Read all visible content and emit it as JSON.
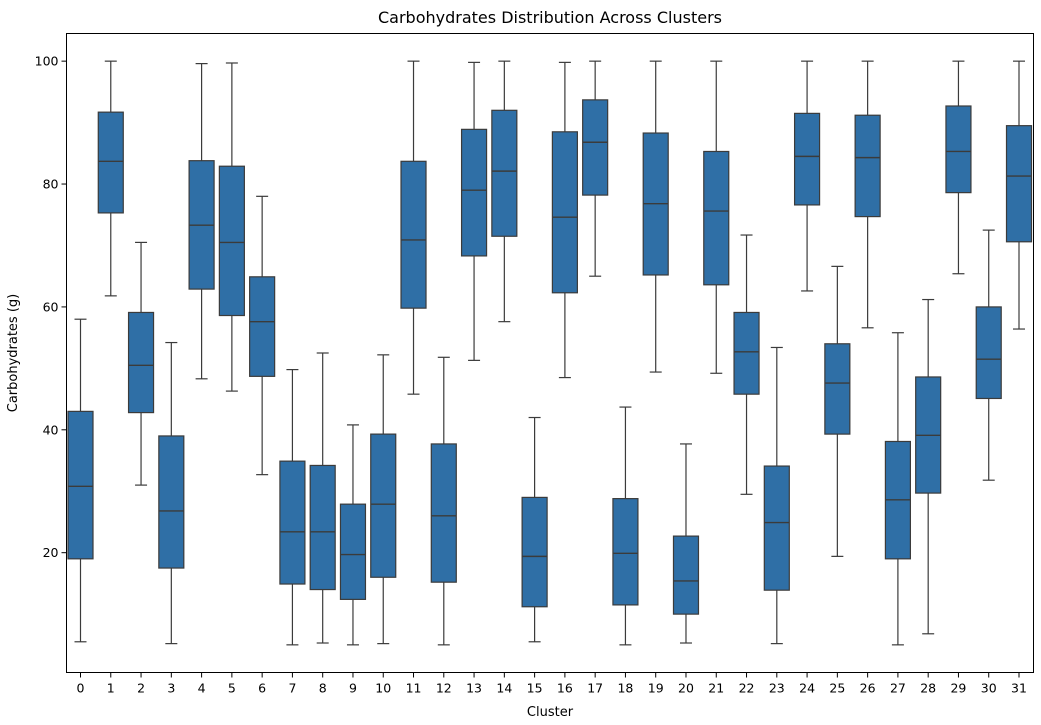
{
  "chart_data": {
    "type": "box",
    "title": "Carbohydrates Distribution Across Clusters",
    "xlabel": "Cluster",
    "ylabel": "Carbohydrates (g)",
    "ylim": [
      0.5,
      104.5
    ],
    "yticks": [
      20,
      40,
      60,
      80,
      100
    ],
    "grid": false,
    "box_color": "#2f6fa6",
    "line_color": "#3b3b3b",
    "categories": [
      "0",
      "1",
      "2",
      "3",
      "4",
      "5",
      "6",
      "7",
      "8",
      "9",
      "10",
      "11",
      "12",
      "13",
      "14",
      "15",
      "16",
      "17",
      "18",
      "19",
      "20",
      "21",
      "22",
      "23",
      "24",
      "25",
      "26",
      "27",
      "28",
      "29",
      "30",
      "31"
    ],
    "boxes": [
      {
        "min": 5.5,
        "q1": 19,
        "median": 30.8,
        "q3": 43,
        "max": 58
      },
      {
        "min": 61.8,
        "q1": 75.3,
        "median": 83.7,
        "q3": 91.7,
        "max": 100
      },
      {
        "min": 31,
        "q1": 42.8,
        "median": 50.5,
        "q3": 59.1,
        "max": 70.5
      },
      {
        "min": 5.2,
        "q1": 17.5,
        "median": 26.8,
        "q3": 39,
        "max": 54.2
      },
      {
        "min": 48.3,
        "q1": 62.9,
        "median": 73.3,
        "q3": 83.8,
        "max": 99.6
      },
      {
        "min": 46.3,
        "q1": 58.6,
        "median": 70.5,
        "q3": 82.9,
        "max": 99.7
      },
      {
        "min": 32.7,
        "q1": 48.7,
        "median": 57.6,
        "q3": 64.9,
        "max": 78
      },
      {
        "min": 5,
        "q1": 14.9,
        "median": 23.4,
        "q3": 34.9,
        "max": 49.8
      },
      {
        "min": 5.3,
        "q1": 14,
        "median": 23.4,
        "q3": 34.2,
        "max": 52.5
      },
      {
        "min": 5,
        "q1": 12.4,
        "median": 19.7,
        "q3": 27.9,
        "max": 40.8
      },
      {
        "min": 5.2,
        "q1": 16,
        "median": 27.9,
        "q3": 39.3,
        "max": 52.2
      },
      {
        "min": 45.8,
        "q1": 59.8,
        "median": 70.9,
        "q3": 83.7,
        "max": 100
      },
      {
        "min": 5,
        "q1": 15.2,
        "median": 26,
        "q3": 37.7,
        "max": 51.8
      },
      {
        "min": 51.3,
        "q1": 68.3,
        "median": 79,
        "q3": 88.9,
        "max": 99.8
      },
      {
        "min": 57.6,
        "q1": 71.5,
        "median": 82.1,
        "q3": 92,
        "max": 100
      },
      {
        "min": 5.5,
        "q1": 11.2,
        "median": 19.4,
        "q3": 29,
        "max": 42
      },
      {
        "min": 48.5,
        "q1": 62.3,
        "median": 74.6,
        "q3": 88.5,
        "max": 99.8
      },
      {
        "min": 65,
        "q1": 78.2,
        "median": 86.8,
        "q3": 93.7,
        "max": 100
      },
      {
        "min": 5,
        "q1": 11.5,
        "median": 19.9,
        "q3": 28.8,
        "max": 43.7
      },
      {
        "min": 49.4,
        "q1": 65.2,
        "median": 76.8,
        "q3": 88.3,
        "max": 100
      },
      {
        "min": 5.3,
        "q1": 10,
        "median": 15.4,
        "q3": 22.7,
        "max": 37.7
      },
      {
        "min": 49.2,
        "q1": 63.6,
        "median": 75.6,
        "q3": 85.3,
        "max": 100
      },
      {
        "min": 29.5,
        "q1": 45.8,
        "median": 52.7,
        "q3": 59.1,
        "max": 71.7
      },
      {
        "min": 5.2,
        "q1": 13.9,
        "median": 24.9,
        "q3": 34.1,
        "max": 53.4
      },
      {
        "min": 62.6,
        "q1": 76.6,
        "median": 84.5,
        "q3": 91.5,
        "max": 100
      },
      {
        "min": 19.4,
        "q1": 39.3,
        "median": 47.6,
        "q3": 54,
        "max": 66.6
      },
      {
        "min": 56.6,
        "q1": 74.7,
        "median": 84.3,
        "q3": 91.2,
        "max": 100
      },
      {
        "min": 5,
        "q1": 19,
        "median": 28.6,
        "q3": 38.1,
        "max": 55.8
      },
      {
        "min": 6.8,
        "q1": 29.7,
        "median": 39.1,
        "q3": 48.6,
        "max": 61.2
      },
      {
        "min": 65.4,
        "q1": 78.6,
        "median": 85.3,
        "q3": 92.7,
        "max": 100
      },
      {
        "min": 31.8,
        "q1": 45.1,
        "median": 51.5,
        "q3": 60,
        "max": 72.5
      },
      {
        "min": 56.4,
        "q1": 70.6,
        "median": 81.3,
        "q3": 89.5,
        "max": 100
      }
    ]
  }
}
